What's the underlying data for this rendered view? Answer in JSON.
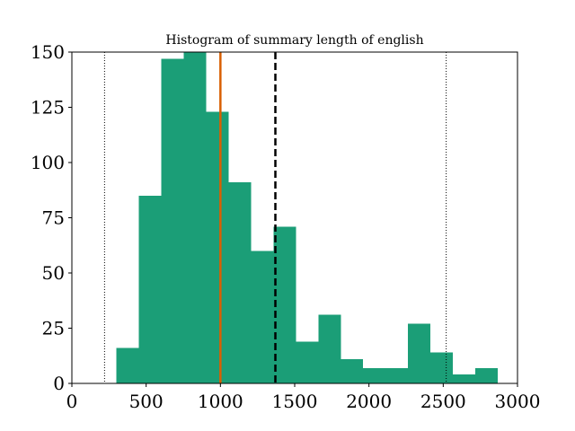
{
  "chart_data": {
    "type": "bar",
    "title": "Histogram of summary length of english",
    "xlabel": "",
    "ylabel": "",
    "xlim": [
      0,
      3000
    ],
    "ylim": [
      0,
      150
    ],
    "x_ticks": [
      0,
      500,
      1000,
      1500,
      2000,
      2500,
      3000
    ],
    "y_ticks": [
      0,
      25,
      50,
      75,
      100,
      125,
      150
    ],
    "x_tick_labels": [
      "0",
      "500",
      "1000",
      "1500",
      "2000",
      "2500",
      "3000"
    ],
    "y_tick_labels": [
      "0",
      "25",
      "50",
      "75",
      "100",
      "125",
      "150"
    ],
    "bins": [
      {
        "start": 300,
        "end": 451,
        "count": 16
      },
      {
        "start": 451,
        "end": 602,
        "count": 85
      },
      {
        "start": 602,
        "end": 753,
        "count": 147
      },
      {
        "start": 753,
        "end": 904,
        "count": 150
      },
      {
        "start": 904,
        "end": 1055,
        "count": 123
      },
      {
        "start": 1055,
        "end": 1206,
        "count": 91
      },
      {
        "start": 1206,
        "end": 1357,
        "count": 60
      },
      {
        "start": 1357,
        "end": 1508,
        "count": 71
      },
      {
        "start": 1508,
        "end": 1659,
        "count": 19
      },
      {
        "start": 1659,
        "end": 1810,
        "count": 31
      },
      {
        "start": 1810,
        "end": 1961,
        "count": 11
      },
      {
        "start": 1961,
        "end": 2112,
        "count": 7
      },
      {
        "start": 2112,
        "end": 2263,
        "count": 7
      },
      {
        "start": 2263,
        "end": 2414,
        "count": 27
      },
      {
        "start": 2414,
        "end": 2565,
        "count": 14
      },
      {
        "start": 2565,
        "end": 2716,
        "count": 4
      },
      {
        "start": 2716,
        "end": 2867,
        "count": 7
      }
    ],
    "bar_color": "#1b9e77",
    "reference_lines": [
      {
        "x": 220,
        "style": "dotted",
        "color": "#000000"
      },
      {
        "x": 2520,
        "style": "dotted",
        "color": "#000000"
      },
      {
        "x": 1000,
        "style": "solid",
        "color": "#d95f02"
      },
      {
        "x": 1370,
        "style": "dashed",
        "color": "#000000"
      }
    ],
    "grid": false
  }
}
